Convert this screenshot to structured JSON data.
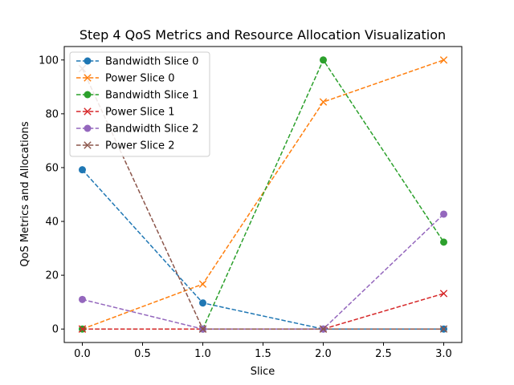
{
  "chart_data": {
    "type": "line",
    "title": "Step 4 QoS Metrics and Resource Allocation Visualization",
    "xlabel": "Slice",
    "ylabel": "QoS Metrics and Allocations",
    "xlim": [
      -0.15,
      3.15
    ],
    "ylim": [
      -5,
      105
    ],
    "xticks": [
      0.0,
      0.5,
      1.0,
      1.5,
      2.0,
      2.5,
      3.0
    ],
    "xtick_labels": [
      "0.0",
      "0.5",
      "1.0",
      "1.5",
      "2.0",
      "2.5",
      "3.0"
    ],
    "yticks": [
      0,
      20,
      40,
      60,
      80,
      100
    ],
    "ytick_labels": [
      "0",
      "20",
      "40",
      "60",
      "80",
      "100"
    ],
    "grid": false,
    "legend_position": "top-left",
    "x": [
      0,
      1,
      2,
      3
    ],
    "series": [
      {
        "name": "Bandwidth Slice 0",
        "values": [
          59.2,
          9.7,
          0,
          0
        ],
        "color": "#1f77b4",
        "marker": "circle",
        "line_style": "dashed"
      },
      {
        "name": "Power Slice 0",
        "values": [
          0,
          16.7,
          84.4,
          100
        ],
        "color": "#ff7f0e",
        "marker": "x",
        "line_style": "dashed"
      },
      {
        "name": "Bandwidth Slice 1",
        "values": [
          0,
          0,
          100,
          32.3
        ],
        "color": "#2ca02c",
        "marker": "circle",
        "line_style": "dashed"
      },
      {
        "name": "Power Slice 1",
        "values": [
          0,
          0,
          0,
          13.2
        ],
        "color": "#d62728",
        "marker": "x",
        "line_style": "dashed"
      },
      {
        "name": "Bandwidth Slice 2",
        "values": [
          11,
          0,
          0,
          42.7
        ],
        "color": "#9467bd",
        "marker": "circle",
        "line_style": "dashed"
      },
      {
        "name": "Power Slice 2",
        "values": [
          96.8,
          0,
          0,
          0
        ],
        "color": "#8c564b",
        "marker": "x",
        "line_style": "dashed"
      }
    ]
  }
}
